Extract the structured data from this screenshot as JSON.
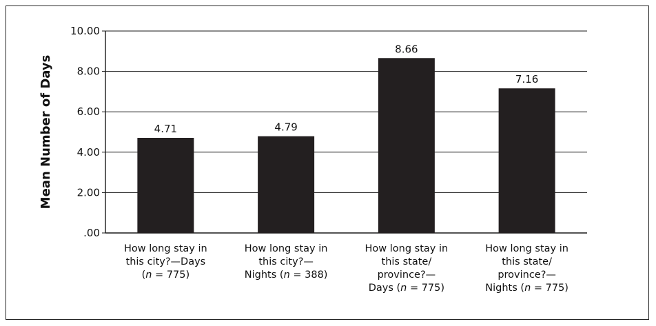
{
  "chart_data": {
    "type": "bar",
    "title": "",
    "xlabel": "",
    "ylabel": "Mean Number of Days",
    "ylim": [
      0,
      10
    ],
    "yticks": [
      ".00",
      "2.00",
      "4.00",
      "6.00",
      "8.00",
      "10.00"
    ],
    "grid": true,
    "categories": [
      [
        "How long stay in",
        "this city?—Days",
        "(n = 775)"
      ],
      [
        "How long stay in",
        "this city?—",
        "Nights (n = 388)"
      ],
      [
        "How long stay in",
        "this state/",
        "province?—",
        "Days (n = 775)"
      ],
      [
        "How long stay in",
        "this state/",
        "province?—",
        "Nights (n = 775)"
      ]
    ],
    "values": [
      4.71,
      4.79,
      8.66,
      7.16
    ],
    "value_labels": [
      "4.71",
      "4.79",
      "8.66",
      "7.16"
    ],
    "bar_color": "#231f20"
  }
}
